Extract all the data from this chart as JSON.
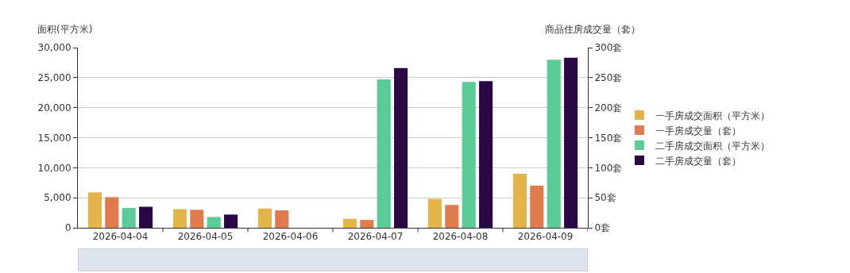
{
  "chart_data": {
    "type": "bar",
    "categories": [
      "2026-04-04",
      "2026-04-05",
      "2026-04-06",
      "2026-04-07",
      "2026-04-08",
      "2026-04-09"
    ],
    "ylabel": "面积(平方米)",
    "y2label": "商品住房成交量（套）",
    "series": [
      {
        "name": "一手房成交面积（平方米）",
        "color": "#e3b34c",
        "values": [
          5900,
          3100,
          3200,
          1500,
          4800,
          9000
        ]
      },
      {
        "name": "一手房成交量（套）",
        "color": "#e07b4e",
        "axis": "y2",
        "values": [
          51,
          30,
          29,
          13,
          38,
          70
        ]
      },
      {
        "name": "二手房成交面积（平方米）",
        "color": "#5ccb97",
        "values": [
          3300,
          1800,
          null,
          24700,
          24300,
          28000
        ]
      },
      {
        "name": "二手房成交量（套）",
        "color": "#2a0845",
        "axis": "y2",
        "values": [
          35,
          22,
          null,
          266,
          244,
          283
        ]
      }
    ],
    "ylim": [
      0,
      30000
    ],
    "yticks": [
      {
        "value": 0,
        "label": "0"
      },
      {
        "value": 5000,
        "label": "5,000"
      },
      {
        "value": 10000,
        "label": "10,000"
      },
      {
        "value": 15000,
        "label": "15,000"
      },
      {
        "value": 20000,
        "label": "20,000"
      },
      {
        "value": 25000,
        "label": "25,000"
      },
      {
        "value": 30000,
        "label": "30,000"
      }
    ],
    "y2lim": [
      0,
      300
    ],
    "y2ticks": [
      {
        "value": 0,
        "label": "0套"
      },
      {
        "value": 50,
        "label": "50套"
      },
      {
        "value": 100,
        "label": "100套"
      },
      {
        "value": 150,
        "label": "150套"
      },
      {
        "value": 200,
        "label": "200套"
      },
      {
        "value": 250,
        "label": "250套"
      },
      {
        "value": 300,
        "label": "300套"
      }
    ],
    "grid": "y",
    "legend": "right"
  }
}
